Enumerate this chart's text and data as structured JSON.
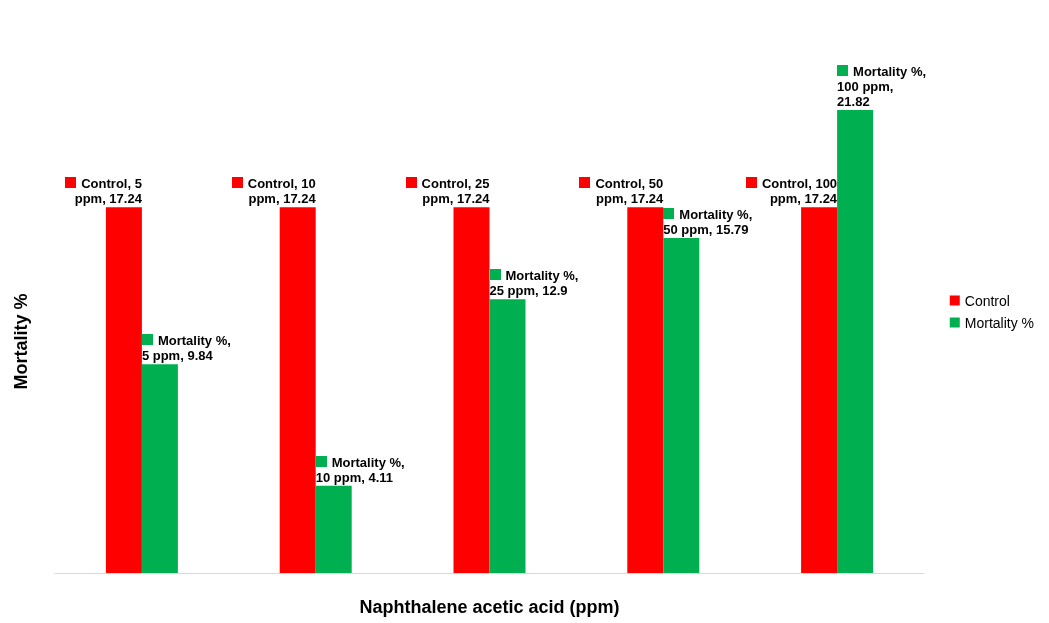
{
  "chart_data": {
    "type": "bar",
    "xlabel": "Naphthalene acetic acid (ppm)",
    "ylabel": "Mortality %",
    "categories": [
      null,
      null,
      null,
      null,
      null
    ],
    "series": [
      {
        "name": "Control",
        "color": "#ff0000",
        "values": [
          17.24,
          17.24,
          17.24,
          17.24,
          17.24
        ],
        "value_labels": [
          "Control, 5 ppm, 17.24",
          "Control, 10 ppm, 17.24",
          "Control, 25 ppm, 17.24",
          "Control, 50 ppm, 17.24",
          "Control, 100 ppm, 17.24"
        ]
      },
      {
        "name": "Mortality %",
        "color": "#00b050",
        "values": [
          9.84,
          4.11,
          12.9,
          15.79,
          21.82
        ],
        "value_labels": [
          "Mortality %, 5 ppm, 9.84",
          "Mortality %, 10 ppm, 4.11",
          "Mortality %, 25 ppm, 12.9",
          "Mortality %, 50 ppm, 15.79",
          "Mortality %, 100 ppm, 21.82"
        ]
      }
    ],
    "legend": "right",
    "grid": false,
    "tick_labels": false
  }
}
